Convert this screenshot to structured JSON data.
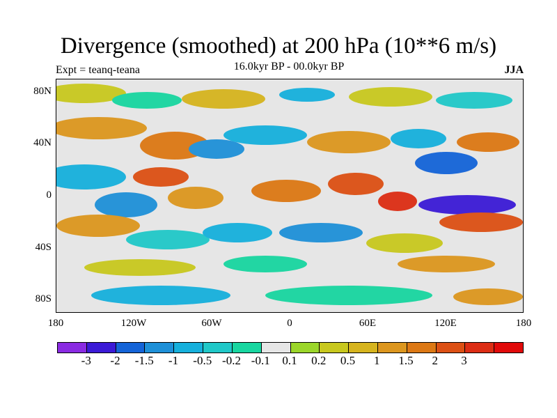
{
  "header": {
    "title": "Divergence (smoothed) at 200 hPa (10**6 m/s)",
    "expt": "Expt = teanq-teana",
    "period": "16.0kyr BP - 00.0kyr BP",
    "season": "JJA"
  },
  "axes": {
    "lat_labels": [
      "80N",
      "40N",
      "0",
      "40S",
      "80S"
    ],
    "lon_labels": [
      "180",
      "120W",
      "60W",
      "0",
      "60E",
      "120E",
      "180"
    ]
  },
  "colorbar": {
    "colors": [
      "#8a2be2",
      "#3b1ad6",
      "#1464d8",
      "#1e90d8",
      "#16b0dc",
      "#20c8c8",
      "#18d6a0",
      "#e6e6e6",
      "#9bd62a",
      "#c8c81e",
      "#d6b41e",
      "#dc961e",
      "#dc7814",
      "#dc5014",
      "#dc2d14",
      "#e10a0a"
    ],
    "labels": [
      "-3",
      "-2",
      "-1.5",
      "-1",
      "-0.5",
      "-0.2",
      "-0.1",
      "0.1",
      "0.2",
      "0.5",
      "1",
      "1.5",
      "2",
      "3"
    ]
  }
}
